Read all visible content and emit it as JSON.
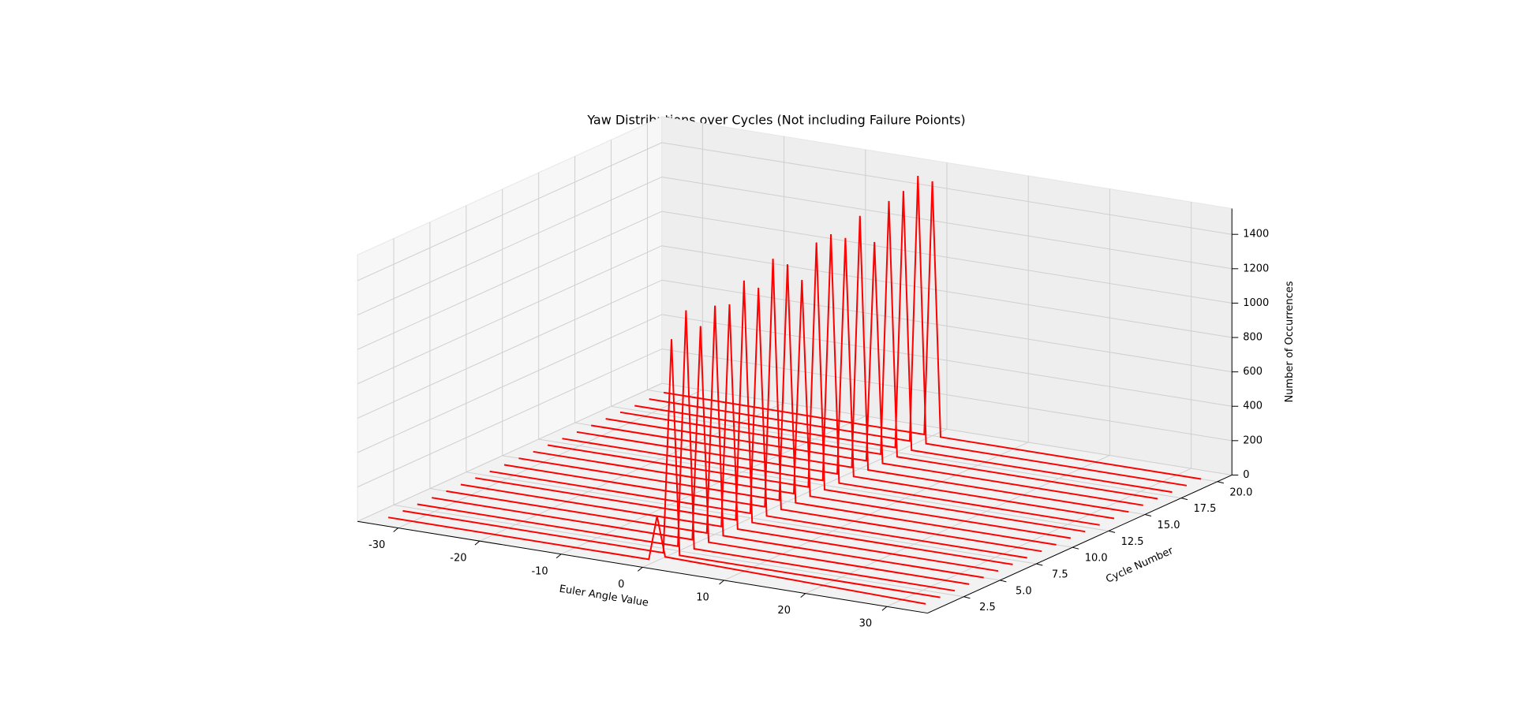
{
  "chart_data": {
    "type": "line3d",
    "title": "Yaw Distributions over Cycles (Not including Failure Poionts)",
    "x_label": "Euler Angle Value",
    "y_label": "Cycle Number",
    "z_label": "Number of Occurrences",
    "x": [
      -33,
      -1,
      0,
      1,
      33
    ],
    "series": [
      {
        "cycle": 1,
        "color": "#ff0000",
        "values": [
          0,
          0,
          260,
          30,
          0
        ]
      },
      {
        "cycle": 2,
        "color": "#ff0000",
        "values": [
          0,
          0,
          1250,
          0,
          0
        ]
      },
      {
        "cycle": 3,
        "color": "#ff0000",
        "values": [
          0,
          0,
          1380,
          0,
          0
        ]
      },
      {
        "cycle": 4,
        "color": "#ff0000",
        "values": [
          0,
          0,
          1250,
          0,
          0
        ]
      },
      {
        "cycle": 5,
        "color": "#ff0000",
        "values": [
          0,
          0,
          1330,
          0,
          0
        ]
      },
      {
        "cycle": 6,
        "color": "#ff0000",
        "values": [
          0,
          0,
          1300,
          0,
          0
        ]
      },
      {
        "cycle": 7,
        "color": "#ff0000",
        "values": [
          0,
          0,
          1400,
          0,
          0
        ]
      },
      {
        "cycle": 8,
        "color": "#ff0000",
        "values": [
          0,
          0,
          1320,
          0,
          0
        ]
      },
      {
        "cycle": 9,
        "color": "#ff0000",
        "values": [
          0,
          0,
          1450,
          0,
          0
        ]
      },
      {
        "cycle": 10,
        "color": "#ff0000",
        "values": [
          0,
          0,
          1380,
          0,
          0
        ]
      },
      {
        "cycle": 11,
        "color": "#ff0000",
        "values": [
          0,
          0,
          1250,
          0,
          0
        ]
      },
      {
        "cycle": 12,
        "color": "#ff0000",
        "values": [
          0,
          0,
          1430,
          0,
          0
        ]
      },
      {
        "cycle": 13,
        "color": "#ff0000",
        "values": [
          0,
          0,
          1440,
          0,
          0
        ]
      },
      {
        "cycle": 14,
        "color": "#ff0000",
        "values": [
          0,
          0,
          1380,
          0,
          0
        ]
      },
      {
        "cycle": 15,
        "color": "#ff0000",
        "values": [
          0,
          0,
          1470,
          0,
          0
        ]
      },
      {
        "cycle": 16,
        "color": "#ff0000",
        "values": [
          0,
          0,
          1280,
          0,
          0
        ]
      },
      {
        "cycle": 17,
        "color": "#ff0000",
        "values": [
          0,
          0,
          1480,
          0,
          0
        ]
      },
      {
        "cycle": 18,
        "color": "#ff0000",
        "values": [
          0,
          0,
          1500,
          0,
          0
        ]
      },
      {
        "cycle": 19,
        "color": "#ff0000",
        "values": [
          0,
          0,
          1550,
          0,
          0
        ]
      },
      {
        "cycle": 20,
        "color": "#ff0000",
        "values": [
          0,
          0,
          1480,
          0,
          0
        ]
      }
    ],
    "xlim": [
      -35,
      35
    ],
    "xticks": [
      -30,
      -20,
      -10,
      0,
      10,
      20,
      30
    ],
    "ylim": [
      0,
      21
    ],
    "yticks": [
      2.5,
      {
        "value": 5,
        "label": "5.0"
      },
      7.5,
      {
        "value": 10,
        "label": "10.0"
      },
      12.5,
      {
        "value": 15,
        "label": "15.0"
      },
      17.5,
      {
        "value": 20,
        "label": "20.0"
      }
    ],
    "zlim": [
      0,
      1550
    ],
    "zticks": [
      0,
      200,
      400,
      600,
      800,
      1000,
      1200,
      1400
    ],
    "grid": true
  }
}
